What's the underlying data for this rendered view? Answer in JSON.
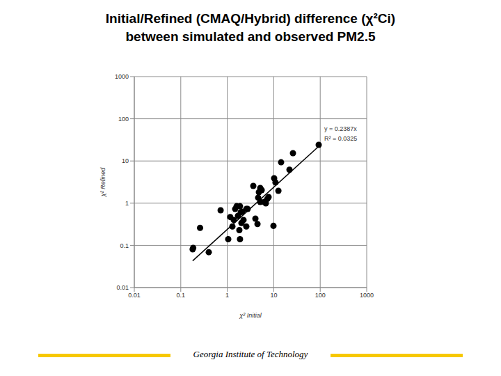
{
  "chart_data": {
    "type": "scatter",
    "title": [
      "Initial/Refined (CMAQ/Hybrid) difference (χ²Ci)",
      "between simulated and observed PM2.5"
    ],
    "x_label": "χ² Initial",
    "y_label": "χ² Refined",
    "log": true,
    "grid": true,
    "xlim": [
      0.01,
      1000
    ],
    "ylim": [
      0.01,
      1000
    ],
    "xticks": [
      0.01,
      0.1,
      1,
      10,
      100,
      1000
    ],
    "yticks": [
      0.01,
      0.1,
      1,
      10,
      100,
      1000
    ],
    "color": "#000000",
    "marker": "circle",
    "x": [
      0.18,
      0.185,
      0.26,
      0.4,
      0.72,
      1.05,
      1.16,
      1.29,
      1.38,
      1.48,
      1.59,
      1.7,
      1.82,
      1.88,
      1.95,
      2.02,
      2.09,
      1.88,
      2.24,
      2.57,
      2.57,
      2.75,
      3.63,
      4.03,
      4.47,
      4.62,
      4.79,
      5.13,
      5.13,
      5.5,
      6.3,
      6.75,
      7.23,
      7.74,
      9.86,
      10.2,
      10.9,
      12.6,
      14.4,
      21.8,
      25.9,
      92.7
    ],
    "values": [
      0.081,
      0.087,
      0.26,
      0.069,
      0.68,
      0.14,
      0.47,
      0.28,
      0.4,
      0.73,
      0.85,
      0.5,
      0.23,
      0.85,
      0.61,
      0.34,
      0.63,
      0.14,
      0.4,
      0.73,
      0.28,
      0.73,
      2.56,
      0.43,
      0.32,
      1.35,
      1.82,
      2.29,
      1.07,
      2.04,
      1.07,
      0.99,
      1.25,
      1.4,
      0.29,
      3.89,
      3.1,
      1.97,
      9.3,
      6.2,
      15.3,
      24.2
    ],
    "trendline": {
      "x": [
        0.18,
        100
      ],
      "values": [
        0.043,
        23.9
      ],
      "color": "#000000"
    },
    "annotations": [
      "y = 0.2387x",
      "R² = 0.0325"
    ]
  },
  "footer": "Georgia Institute of Technology"
}
